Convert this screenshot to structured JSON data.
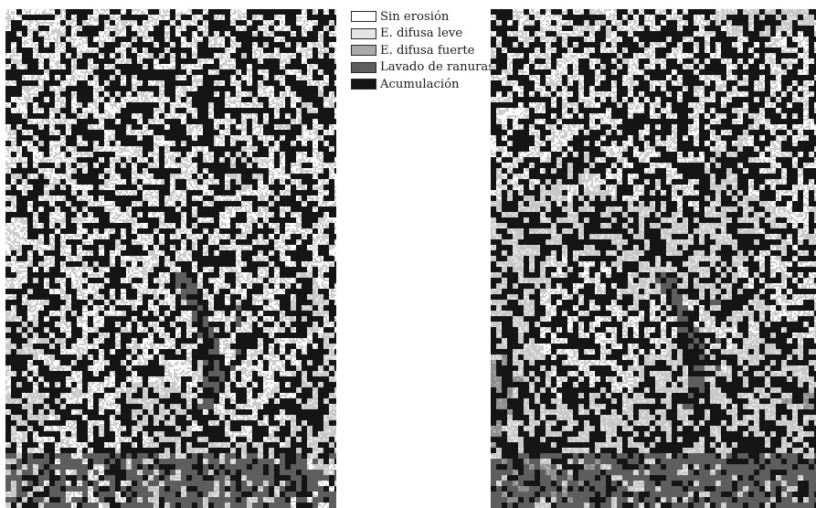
{
  "legend": {
    "items": [
      {
        "label": "Sin erosión",
        "color": "#ffffff"
      },
      {
        "label": "E. difusa leve",
        "color": "#e4e4e4"
      },
      {
        "label": "E. difusa fuerte",
        "color": "#a9a9a9"
      },
      {
        "label": "Lavado de ranuras",
        "color": "#5e5e5e"
      },
      {
        "label": "Acumulación",
        "color": "#151515"
      }
    ]
  }
}
